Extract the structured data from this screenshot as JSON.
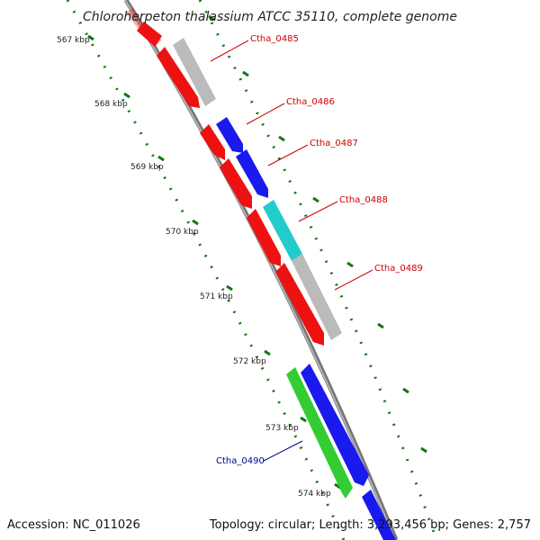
{
  "title": "Chloroherpeton thalassium ATCC 35110, complete genome",
  "footer": {
    "accession": "Accession: NC_011026",
    "stats": "Topology: circular; Length: 3,293,456 bp; Genes: 2,757"
  },
  "ticks": [
    "567 kbp",
    "568 kbp",
    "569 kbp",
    "570 kbp",
    "571 kbp",
    "572 kbp",
    "573 kbp",
    "574 kbp"
  ],
  "gene_labels": [
    {
      "text": "Ctha_0485",
      "color": "#cc0000"
    },
    {
      "text": "Ctha_0486",
      "color": "#cc0000"
    },
    {
      "text": "Ctha_0487",
      "color": "#cc0000"
    },
    {
      "text": "Ctha_0488",
      "color": "#cc0000"
    },
    {
      "text": "Ctha_0489",
      "color": "#cc0000"
    },
    {
      "text": "Ctha_0490",
      "color": "#000099"
    }
  ],
  "colors": {
    "red": "#ee1111",
    "blue": "#1a1aee",
    "gray": "#bbbbbb",
    "cyan": "#22cccc",
    "green": "#33cc33",
    "backbone": "#888888",
    "tick": "#117711"
  }
}
